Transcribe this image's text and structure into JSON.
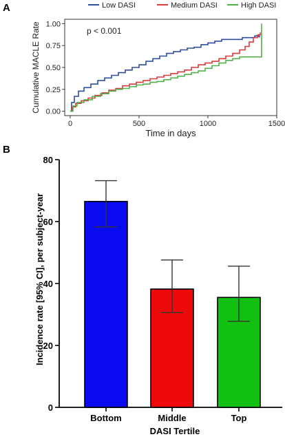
{
  "chart_data": [
    {
      "panel_label": "A",
      "type": "line",
      "title": "",
      "xlabel": "Time in days",
      "ylabel": "Cumulative MACLE Rate",
      "xlim": [
        -40,
        1500
      ],
      "ylim": [
        -0.05,
        1.05
      ],
      "x_ticks": [
        0,
        500,
        1000,
        1500
      ],
      "y_ticks": [
        0.0,
        0.25,
        0.5,
        0.75,
        1.0
      ],
      "y_tick_labels": [
        "0.00",
        "0.25",
        "0.50",
        "0.75",
        "1.00"
      ],
      "annotation": "p < 0.001",
      "legend_position": "top",
      "grid": false,
      "series": [
        {
          "name": "Low DASI",
          "color": "#2c4e9c",
          "points": [
            [
              0,
              0
            ],
            [
              10,
              0.1
            ],
            [
              30,
              0.17
            ],
            [
              60,
              0.23
            ],
            [
              100,
              0.27
            ],
            [
              150,
              0.31
            ],
            [
              200,
              0.35
            ],
            [
              250,
              0.38
            ],
            [
              300,
              0.41
            ],
            [
              350,
              0.44
            ],
            [
              400,
              0.47
            ],
            [
              450,
              0.5
            ],
            [
              500,
              0.53
            ],
            [
              550,
              0.57
            ],
            [
              600,
              0.6
            ],
            [
              650,
              0.63
            ],
            [
              700,
              0.66
            ],
            [
              750,
              0.68
            ],
            [
              800,
              0.7
            ],
            [
              850,
              0.72
            ],
            [
              900,
              0.73
            ],
            [
              950,
              0.76
            ],
            [
              1000,
              0.78
            ],
            [
              1050,
              0.8
            ],
            [
              1100,
              0.82
            ],
            [
              1200,
              0.82
            ],
            [
              1250,
              0.84
            ],
            [
              1300,
              0.84
            ],
            [
              1340,
              0.86
            ],
            [
              1370,
              0.88
            ],
            [
              1370,
              0.85
            ],
            [
              1380,
              0.85
            ]
          ]
        },
        {
          "name": "Medium DASI",
          "color": "#d93a3a",
          "points": [
            [
              0,
              0
            ],
            [
              15,
              0.05
            ],
            [
              40,
              0.09
            ],
            [
              80,
              0.12
            ],
            [
              130,
              0.15
            ],
            [
              180,
              0.18
            ],
            [
              230,
              0.21
            ],
            [
              280,
              0.24
            ],
            [
              330,
              0.26
            ],
            [
              380,
              0.29
            ],
            [
              430,
              0.31
            ],
            [
              480,
              0.33
            ],
            [
              530,
              0.35
            ],
            [
              580,
              0.37
            ],
            [
              630,
              0.39
            ],
            [
              680,
              0.41
            ],
            [
              730,
              0.43
            ],
            [
              780,
              0.45
            ],
            [
              830,
              0.47
            ],
            [
              880,
              0.5
            ],
            [
              930,
              0.53
            ],
            [
              980,
              0.55
            ],
            [
              1030,
              0.57
            ],
            [
              1080,
              0.6
            ],
            [
              1130,
              0.63
            ],
            [
              1180,
              0.66
            ],
            [
              1230,
              0.7
            ],
            [
              1270,
              0.74
            ],
            [
              1300,
              0.79
            ],
            [
              1330,
              0.84
            ],
            [
              1360,
              0.87
            ],
            [
              1380,
              0.9
            ]
          ]
        },
        {
          "name": "High DASI",
          "color": "#4fb04a",
          "points": [
            [
              0,
              0
            ],
            [
              20,
              0.06
            ],
            [
              50,
              0.1
            ],
            [
              100,
              0.13
            ],
            [
              160,
              0.17
            ],
            [
              220,
              0.2
            ],
            [
              280,
              0.23
            ],
            [
              330,
              0.25
            ],
            [
              380,
              0.26
            ],
            [
              430,
              0.28
            ],
            [
              480,
              0.3
            ],
            [
              530,
              0.31
            ],
            [
              580,
              0.33
            ],
            [
              630,
              0.34
            ],
            [
              680,
              0.36
            ],
            [
              730,
              0.38
            ],
            [
              780,
              0.4
            ],
            [
              830,
              0.42
            ],
            [
              880,
              0.44
            ],
            [
              930,
              0.46
            ],
            [
              980,
              0.49
            ],
            [
              1030,
              0.52
            ],
            [
              1080,
              0.55
            ],
            [
              1130,
              0.58
            ],
            [
              1180,
              0.6
            ],
            [
              1230,
              0.62
            ],
            [
              1280,
              0.62
            ],
            [
              1330,
              0.62
            ],
            [
              1380,
              0.62
            ],
            [
              1390,
              0.62
            ],
            [
              1390,
              1.0
            ]
          ]
        }
      ]
    },
    {
      "panel_label": "B",
      "type": "bar",
      "title": "",
      "xlabel": "DASI Tertile",
      "ylabel": "Incidence rate [95% CI], per subject-year",
      "ylim": [
        0,
        80
      ],
      "y_ticks": [
        0,
        20,
        40,
        60,
        80
      ],
      "grid": false,
      "categories": [
        "Bottom",
        "Middle",
        "Top"
      ],
      "values": [
        66.5,
        38.2,
        35.5
      ],
      "ci_lower": [
        58.3,
        30.6,
        27.8
      ],
      "ci_upper": [
        73.2,
        47.6,
        45.6
      ],
      "colors": [
        "#0a0af0",
        "#ee0a0a",
        "#12c012"
      ]
    }
  ]
}
